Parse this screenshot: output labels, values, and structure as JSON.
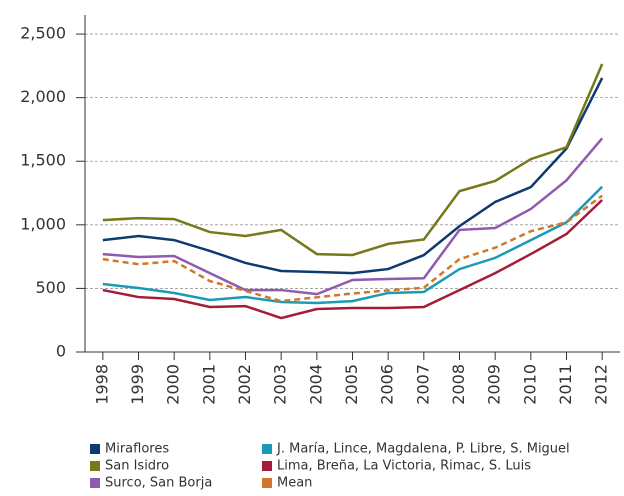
{
  "chart_data": {
    "type": "line",
    "categories": [
      "1998",
      "1999",
      "2000",
      "2001",
      "2002",
      "2003",
      "2004",
      "2005",
      "2006",
      "2007",
      "2008",
      "2009",
      "2010",
      "2011",
      "2012"
    ],
    "series": [
      {
        "name": "Miraflores",
        "color": "#0d3b6e",
        "values": [
          880,
          912,
          880,
          795,
          700,
          637,
          629,
          620,
          652,
          762,
          990,
          1180,
          1297,
          1600,
          2155
        ]
      },
      {
        "name": "J. María, Lince, Magdalena, P. Libre, S. Miguel",
        "color": "#1a9bb5",
        "values": [
          535,
          503,
          464,
          409,
          432,
          393,
          385,
          400,
          464,
          472,
          652,
          740,
          880,
          1020,
          1300
        ]
      },
      {
        "name": "San Isidro",
        "color": "#76781a",
        "values": [
          1037,
          1053,
          1045,
          943,
          912,
          960,
          770,
          763,
          850,
          885,
          1265,
          1345,
          1517,
          1610,
          2265
        ]
      },
      {
        "name": "Lima, Breña, La Victoria, Rimac, S. Luis",
        "color": "#a31c3a",
        "values": [
          487,
          432,
          417,
          354,
          361,
          267,
          338,
          346,
          346,
          354,
          487,
          620,
          770,
          928,
          1195
        ]
      },
      {
        "name": "Surco, San Borja",
        "color": "#8e5bb0",
        "values": [
          770,
          747,
          755,
          620,
          487,
          487,
          455,
          566,
          574,
          580,
          960,
          975,
          1125,
          1350,
          1680
        ]
      },
      {
        "name": "Mean",
        "color": "#d2772a",
        "dash": true,
        "values": [
          730,
          690,
          715,
          558,
          480,
          400,
          430,
          460,
          485,
          505,
          730,
          820,
          950,
          1020,
          1230
        ]
      }
    ],
    "ylim": [
      0,
      2650
    ],
    "yticks": [
      0,
      500,
      {
        "value": 1000,
        "label": "1,000"
      },
      {
        "value": 1500,
        "label": "1,500"
      },
      {
        "value": 2000,
        "label": "2,000"
      },
      {
        "value": 2500,
        "label": "2,500"
      }
    ],
    "grid": true,
    "legend": "bottom"
  }
}
